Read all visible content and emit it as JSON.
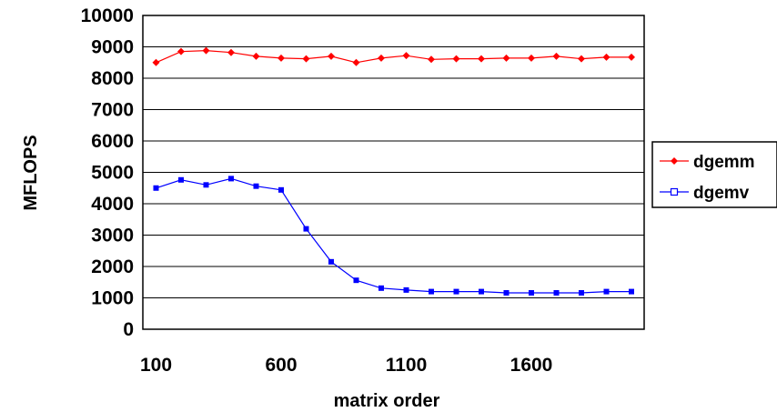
{
  "chart_data": {
    "type": "line",
    "xlabel": "matrix order",
    "ylabel": "MFLOPS",
    "ylim": [
      0,
      10000
    ],
    "yticks": [
      0,
      1000,
      2000,
      3000,
      4000,
      5000,
      6000,
      7000,
      8000,
      9000,
      10000
    ],
    "xticks": [
      100,
      600,
      1100,
      1600
    ],
    "x": [
      100,
      200,
      300,
      400,
      500,
      600,
      700,
      800,
      900,
      1000,
      1100,
      1200,
      1300,
      1400,
      1500,
      1600,
      1700,
      1800,
      1900,
      2000
    ],
    "grid": "horizontal",
    "legend_position": "right",
    "series": [
      {
        "name": "dgemm",
        "color": "#ff0000",
        "marker": "diamond",
        "values": [
          8500,
          8850,
          8880,
          8820,
          8700,
          8640,
          8620,
          8700,
          8500,
          8640,
          8720,
          8600,
          8620,
          8620,
          8640,
          8640,
          8700,
          8620,
          8670,
          8670
        ]
      },
      {
        "name": "dgemv",
        "color": "#0000ff",
        "marker": "square",
        "values": [
          4500,
          4760,
          4600,
          4800,
          4560,
          4440,
          3200,
          2150,
          1560,
          1310,
          1250,
          1200,
          1200,
          1200,
          1160,
          1160,
          1160,
          1160,
          1200,
          1200
        ]
      }
    ]
  }
}
